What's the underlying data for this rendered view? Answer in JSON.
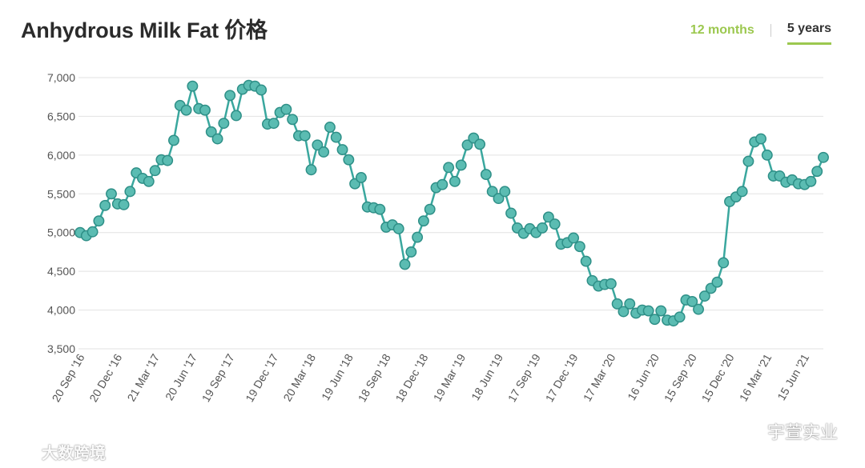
{
  "title": "Anhydrous Milk Fat 价格",
  "tabs": [
    {
      "label": "12 months",
      "selected": false
    },
    {
      "label": "5 years",
      "selected": true
    }
  ],
  "watermark_left": "大数跨境",
  "watermark_right": "宇萱实业",
  "colors": {
    "line": "#3aa79e",
    "point_fill": "#5bbcb2",
    "point_stroke": "#2e8f87",
    "accent": "#9cc84f"
  },
  "chart_data": {
    "type": "line",
    "title": "Anhydrous Milk Fat 价格",
    "xlabel": "",
    "ylabel": "",
    "ylim": [
      3500,
      7000
    ],
    "yticks": [
      3500,
      4000,
      4500,
      5000,
      5500,
      6000,
      6500,
      7000
    ],
    "ytick_labels": [
      "3,500",
      "4,000",
      "4,500",
      "5,000",
      "5,500",
      "6,000",
      "6,500",
      "7,000"
    ],
    "xtick_labels": [
      "20 Sep '16",
      "20 Dec '16",
      "21 Mar '17",
      "20 Jun '17",
      "19 Sep '17",
      "19 Dec '17",
      "20 Mar '18",
      "19 Jun '18",
      "18 Sep '18",
      "18 Dec '18",
      "19 Mar '19",
      "18 Jun '19",
      "17 Sep '19",
      "17 Dec '19",
      "17 Mar '20",
      "16 Jun '20",
      "15 Sep '20",
      "15 Dec '20",
      "16 Mar '21",
      "15 Jun '21"
    ],
    "grid": true,
    "values": [
      5000,
      4960,
      5010,
      5150,
      5350,
      5500,
      5370,
      5360,
      5530,
      5770,
      5700,
      5660,
      5800,
      5940,
      5930,
      6190,
      6640,
      6580,
      6890,
      6600,
      6580,
      6300,
      6210,
      6410,
      6770,
      6510,
      6850,
      6900,
      6890,
      6840,
      6400,
      6410,
      6550,
      6590,
      6460,
      6250,
      6250,
      5810,
      6130,
      6040,
      6360,
      6230,
      6070,
      5940,
      5630,
      5710,
      5330,
      5320,
      5300,
      5070,
      5100,
      5050,
      4590,
      4750,
      4940,
      5150,
      5300,
      5580,
      5620,
      5840,
      5660,
      5870,
      6130,
      6220,
      6140,
      5750,
      5530,
      5440,
      5530,
      5250,
      5060,
      4990,
      5050,
      5000,
      5060,
      5200,
      5110,
      4850,
      4870,
      4930,
      4820,
      4630,
      4380,
      4310,
      4330,
      4340,
      4080,
      3980,
      4080,
      3960,
      4000,
      3990,
      3880,
      3990,
      3870,
      3860,
      3910,
      4130,
      4110,
      4010,
      4180,
      4280,
      4360,
      4610,
      5400,
      5460,
      5530,
      5920,
      6170,
      6210,
      6000,
      5730,
      5730,
      5650,
      5680,
      5630,
      5620,
      5660,
      5790,
      5970
    ]
  }
}
